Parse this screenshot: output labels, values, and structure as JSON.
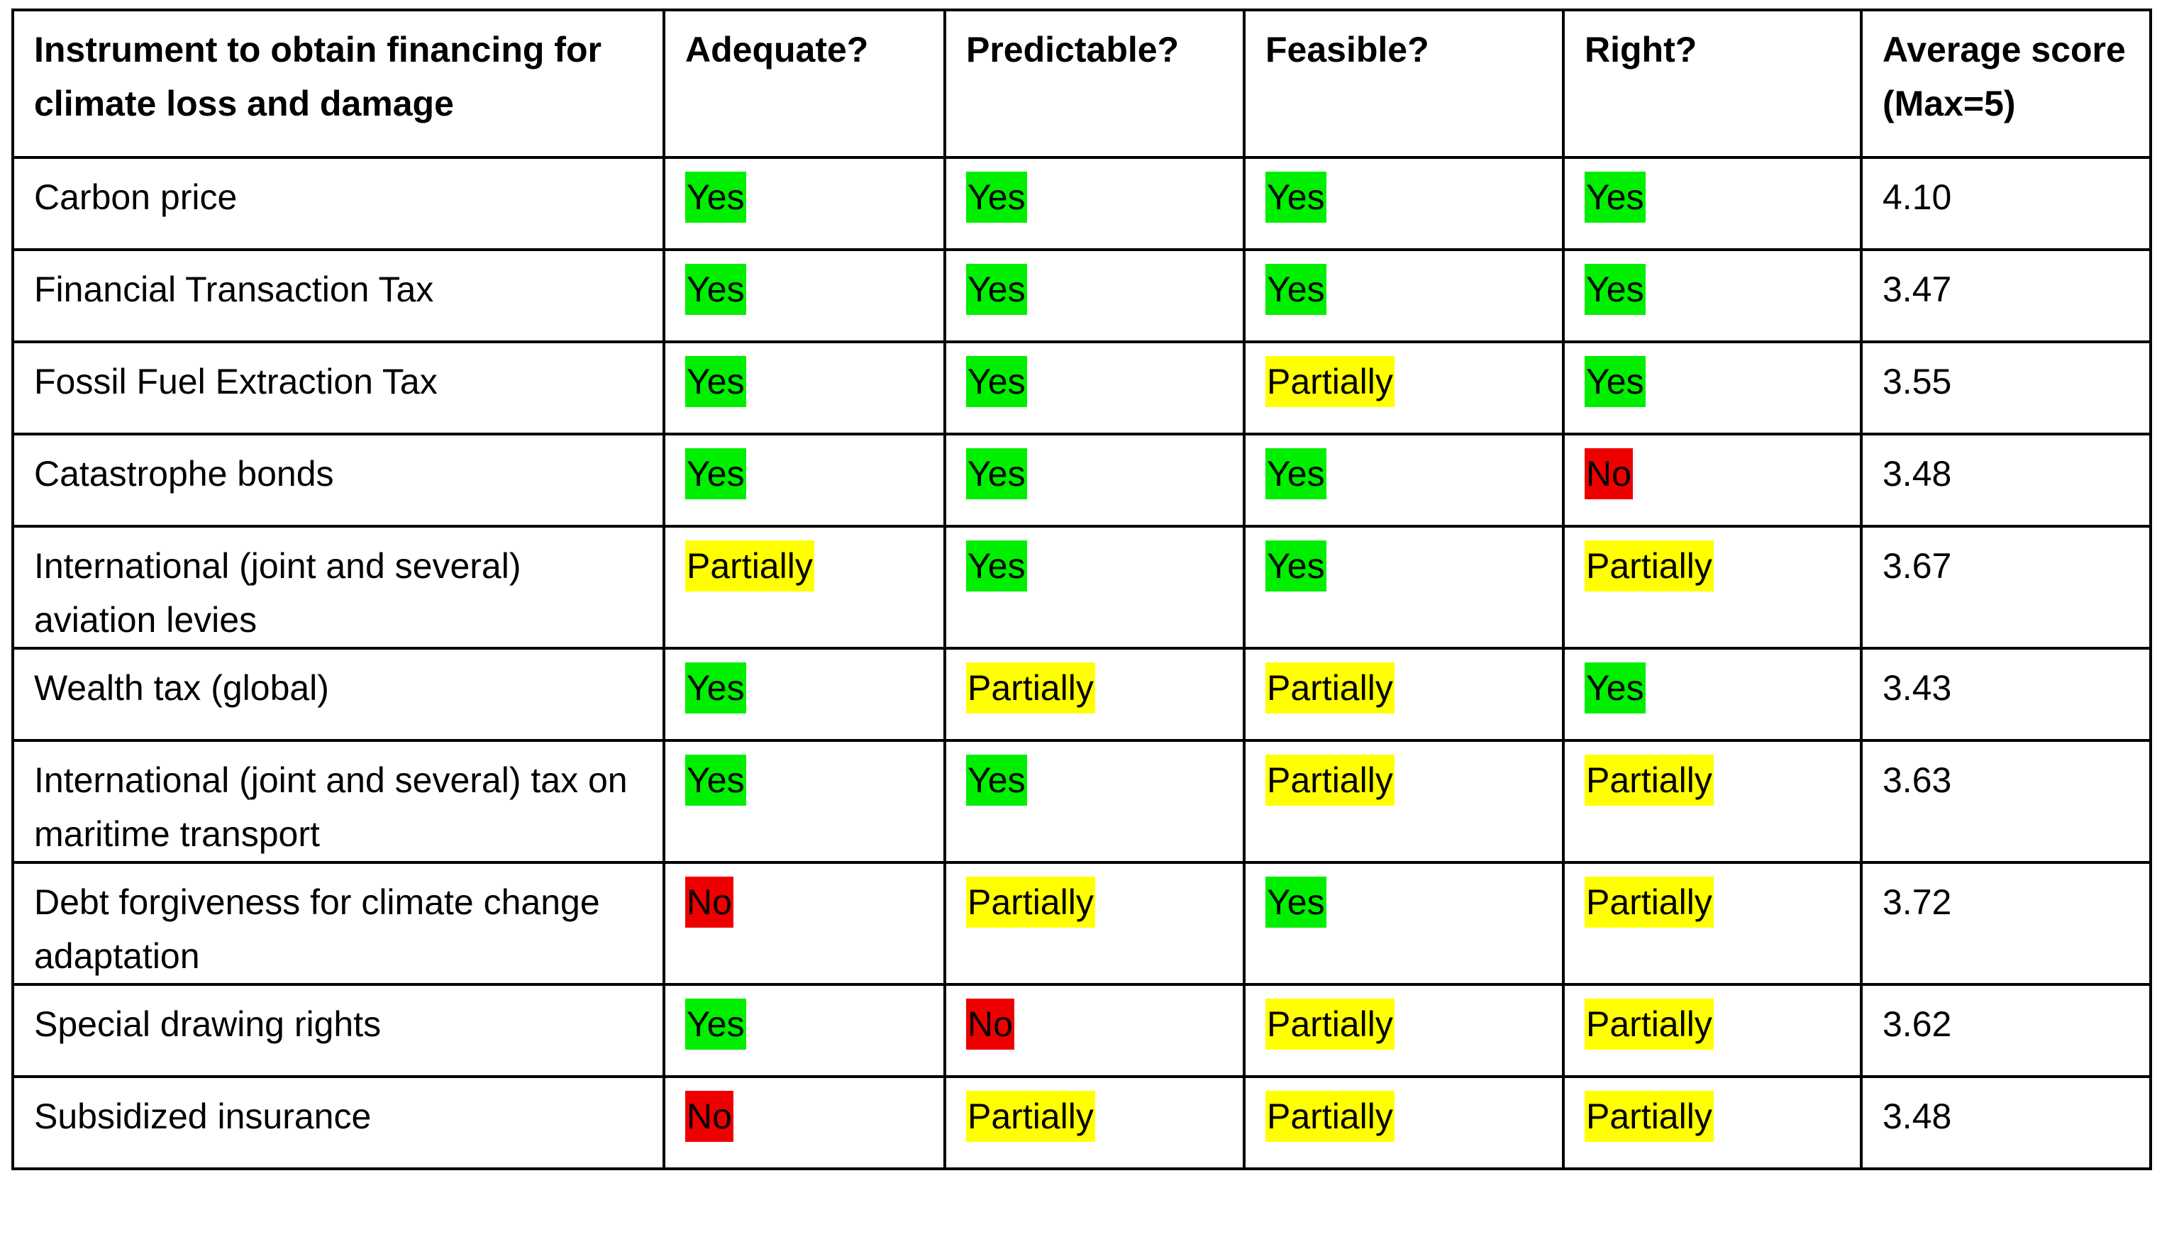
{
  "colors": {
    "yes": "#00ee00",
    "partially": "#ffff00",
    "no": "#ee0000",
    "border": "#000000"
  },
  "table": {
    "headers": [
      "Instrument to obtain financing for climate loss and damage",
      "Adequate?",
      "Predictable?",
      "Feasible?",
      "Right?",
      "Average score (Max=5)"
    ],
    "rows": [
      {
        "instrument": "Carbon price",
        "ratings": [
          "Yes",
          "Yes",
          "Yes",
          "Yes"
        ],
        "score": "4.10"
      },
      {
        "instrument": "Financial Transaction Tax",
        "ratings": [
          "Yes",
          "Yes",
          "Yes",
          "Yes"
        ],
        "score": "3.47"
      },
      {
        "instrument": "Fossil Fuel Extraction Tax",
        "ratings": [
          "Yes",
          "Yes",
          "Partially",
          "Yes"
        ],
        "score": "3.55"
      },
      {
        "instrument": "Catastrophe bonds",
        "ratings": [
          "Yes",
          "Yes",
          "Yes",
          "No"
        ],
        "score": "3.48"
      },
      {
        "instrument": "International (joint and several) aviation levies",
        "ratings": [
          "Partially",
          "Yes",
          "Yes",
          "Partially"
        ],
        "score": "3.67"
      },
      {
        "instrument": "Wealth tax (global)",
        "ratings": [
          "Yes",
          "Partially",
          "Partially",
          "Yes"
        ],
        "score": "3.43"
      },
      {
        "instrument": "International (joint and several) tax on maritime transport",
        "ratings": [
          "Yes",
          "Yes",
          "Partially",
          "Partially"
        ],
        "score": "3.63"
      },
      {
        "instrument": "Debt forgiveness for climate change adaptation",
        "ratings": [
          "No",
          "Partially",
          "Yes",
          "Partially"
        ],
        "score": "3.72"
      },
      {
        "instrument": "Special drawing rights",
        "ratings": [
          "Yes",
          "No",
          "Partially",
          "Partially"
        ],
        "score": "3.62"
      },
      {
        "instrument": "Subsidized insurance",
        "ratings": [
          "No",
          "Partially",
          "Partially",
          "Partially"
        ],
        "score": "3.48"
      }
    ]
  }
}
